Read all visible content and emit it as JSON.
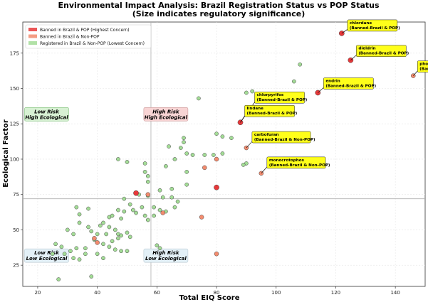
{
  "chart_data": {
    "type": "scatter",
    "title": "Environmental Impact Analysis: Brazil Registration Status vs POP Status",
    "subtitle": "(Size indicates regulatory significance)",
    "xlabel": "Total EIQ Score",
    "ylabel": "Ecological Factor",
    "xlim": [
      15,
      150
    ],
    "ylim": [
      10,
      197
    ],
    "xticks": [
      20,
      40,
      60,
      80,
      100,
      120,
      140
    ],
    "yticks": [
      25,
      50,
      75,
      100,
      125,
      150,
      175
    ],
    "grid": true,
    "legend_position": "top-left",
    "reference_lines": {
      "x": 58,
      "y": 72
    },
    "colors": {
      "banned_pop": "#e8383a",
      "banned_non_pop": "#f28b6e",
      "registered_non_pop": "#a3dc96",
      "marker_edge": "#444444",
      "callout_fill": "#ffff1a",
      "quad_high_high": "#f8d4d4",
      "quad_low_high": "#d7f1d3",
      "quad_other": "#e3f0f7"
    },
    "series": [
      {
        "name": "Banned in Brazil & POP (Highest Concern)",
        "key": "banned_pop",
        "points": [
          {
            "x": 122,
            "y": 189
          },
          {
            "x": 125,
            "y": 170
          },
          {
            "x": 114,
            "y": 147
          },
          {
            "x": 88,
            "y": 126
          },
          {
            "x": 53,
            "y": 76
          },
          {
            "x": 80,
            "y": 80
          }
        ]
      },
      {
        "name": "Banned in Brazil & Non-POP",
        "key": "banned_non_pop",
        "points": [
          {
            "x": 146,
            "y": 159
          },
          {
            "x": 90,
            "y": 108
          },
          {
            "x": 95,
            "y": 90
          },
          {
            "x": 80,
            "y": 100
          },
          {
            "x": 76,
            "y": 94
          },
          {
            "x": 57,
            "y": 75
          },
          {
            "x": 75,
            "y": 59
          },
          {
            "x": 39,
            "y": 44
          },
          {
            "x": 40,
            "y": 41
          },
          {
            "x": 80,
            "y": 33
          },
          {
            "x": 62,
            "y": 62
          }
        ]
      },
      {
        "name": "Registered in Brazil & Non-POP (Lowest Concern)",
        "key": "registered_non_pop",
        "points": [
          {
            "x": 108,
            "y": 167
          },
          {
            "x": 106,
            "y": 155
          },
          {
            "x": 92,
            "y": 148
          },
          {
            "x": 74,
            "y": 143
          },
          {
            "x": 90,
            "y": 147
          },
          {
            "x": 80,
            "y": 118
          },
          {
            "x": 82,
            "y": 116
          },
          {
            "x": 85,
            "y": 115
          },
          {
            "x": 82,
            "y": 104
          },
          {
            "x": 69,
            "y": 115
          },
          {
            "x": 69,
            "y": 112
          },
          {
            "x": 68,
            "y": 108
          },
          {
            "x": 70,
            "y": 104
          },
          {
            "x": 72,
            "y": 103
          },
          {
            "x": 76,
            "y": 103
          },
          {
            "x": 79,
            "y": 103
          },
          {
            "x": 64,
            "y": 109
          },
          {
            "x": 66,
            "y": 100
          },
          {
            "x": 90,
            "y": 97
          },
          {
            "x": 89,
            "y": 96
          },
          {
            "x": 47,
            "y": 100
          },
          {
            "x": 50,
            "y": 98
          },
          {
            "x": 56,
            "y": 97
          },
          {
            "x": 56,
            "y": 91
          },
          {
            "x": 57,
            "y": 88
          },
          {
            "x": 57,
            "y": 84
          },
          {
            "x": 70,
            "y": 91
          },
          {
            "x": 70,
            "y": 82
          },
          {
            "x": 63,
            "y": 95
          },
          {
            "x": 65,
            "y": 79
          },
          {
            "x": 61,
            "y": 78
          },
          {
            "x": 54,
            "y": 75
          },
          {
            "x": 57,
            "y": 74
          },
          {
            "x": 62,
            "y": 73
          },
          {
            "x": 65,
            "y": 73
          },
          {
            "x": 67,
            "y": 70
          },
          {
            "x": 49,
            "y": 72
          },
          {
            "x": 51,
            "y": 68
          },
          {
            "x": 52,
            "y": 64
          },
          {
            "x": 55,
            "y": 66
          },
          {
            "x": 59,
            "y": 66
          },
          {
            "x": 61,
            "y": 64
          },
          {
            "x": 63,
            "y": 63
          },
          {
            "x": 66,
            "y": 66
          },
          {
            "x": 53,
            "y": 62
          },
          {
            "x": 56,
            "y": 60
          },
          {
            "x": 47,
            "y": 64
          },
          {
            "x": 49,
            "y": 63
          },
          {
            "x": 45,
            "y": 60
          },
          {
            "x": 48,
            "y": 58
          },
          {
            "x": 42,
            "y": 55
          },
          {
            "x": 41,
            "y": 53
          },
          {
            "x": 44,
            "y": 52
          },
          {
            "x": 37,
            "y": 65
          },
          {
            "x": 33,
            "y": 66
          },
          {
            "x": 34,
            "y": 61
          },
          {
            "x": 34,
            "y": 55
          },
          {
            "x": 30,
            "y": 50
          },
          {
            "x": 32,
            "y": 47
          },
          {
            "x": 37,
            "y": 52
          },
          {
            "x": 38,
            "y": 49
          },
          {
            "x": 40,
            "y": 47
          },
          {
            "x": 43,
            "y": 47
          },
          {
            "x": 46,
            "y": 50
          },
          {
            "x": 47,
            "y": 47
          },
          {
            "x": 47,
            "y": 44
          },
          {
            "x": 48,
            "y": 46
          },
          {
            "x": 50,
            "y": 48
          },
          {
            "x": 51,
            "y": 45
          },
          {
            "x": 45,
            "y": 42
          },
          {
            "x": 42,
            "y": 40
          },
          {
            "x": 44,
            "y": 38
          },
          {
            "x": 46,
            "y": 36
          },
          {
            "x": 48,
            "y": 35
          },
          {
            "x": 50,
            "y": 35
          },
          {
            "x": 40,
            "y": 33
          },
          {
            "x": 42,
            "y": 30
          },
          {
            "x": 36,
            "y": 37
          },
          {
            "x": 36,
            "y": 33
          },
          {
            "x": 33,
            "y": 37
          },
          {
            "x": 31,
            "y": 35
          },
          {
            "x": 32,
            "y": 30
          },
          {
            "x": 34,
            "y": 29
          },
          {
            "x": 29,
            "y": 33
          },
          {
            "x": 28,
            "y": 38
          },
          {
            "x": 26,
            "y": 40
          },
          {
            "x": 25,
            "y": 33
          },
          {
            "x": 27,
            "y": 15
          },
          {
            "x": 38,
            "y": 17
          },
          {
            "x": 60,
            "y": 39
          },
          {
            "x": 61,
            "y": 37
          },
          {
            "x": 44,
            "y": 59
          },
          {
            "x": 39,
            "y": 43
          },
          {
            "x": 57,
            "y": 57
          },
          {
            "x": 59,
            "y": 60
          }
        ]
      }
    ],
    "annotations": [
      {
        "name": "chlordane",
        "status": "(Banned-Brazil & POP)",
        "x": 122,
        "y": 189,
        "dx": 10,
        "dy": -12
      },
      {
        "name": "dieldrin",
        "status": "(Banned-Brazil & POP)",
        "x": 125,
        "y": 170,
        "dx": 10,
        "dy": -14
      },
      {
        "name": "phorate",
        "status": "(Banned-Brazil & Non-POP)",
        "x": 146,
        "y": 159,
        "dx": 8,
        "dy": -14
      },
      {
        "name": "endrin",
        "status": "(Banned-Brazil & POP)",
        "x": 114,
        "y": 147,
        "dx": 10,
        "dy": -14
      },
      {
        "name": "chlorpyrifos",
        "status": "(Banned-Brazil & POP)",
        "x": 88,
        "y": 126,
        "dx": 22,
        "dy": -36
      },
      {
        "name": "lindane",
        "status": "(Banned-Brazil & POP)",
        "x": 88,
        "y": 126,
        "dx": 8,
        "dy": -17
      },
      {
        "name": "carbofuran",
        "status": "(Banned-Brazil & Non-POP)",
        "x": 90,
        "y": 108,
        "dx": 10,
        "dy": -16
      },
      {
        "name": "monocrotophos",
        "status": "(Banned-Brazil & Non-POP)",
        "x": 95,
        "y": 90,
        "dx": 10,
        "dy": -16
      }
    ],
    "quadrant_labels": [
      {
        "line1": "Low Risk",
        "line2": "High Ecological",
        "x": 23,
        "y": 132,
        "style": "low-high"
      },
      {
        "line1": "High Risk",
        "line2": "High Ecological",
        "x": 63,
        "y": 132,
        "style": "high-high"
      },
      {
        "line1": "Low Risk",
        "line2": "Low Ecological",
        "x": 23,
        "y": 32,
        "style": "other"
      },
      {
        "line1": "High Risk",
        "line2": "Low Ecological",
        "x": 63,
        "y": 32,
        "style": "other"
      }
    ]
  }
}
